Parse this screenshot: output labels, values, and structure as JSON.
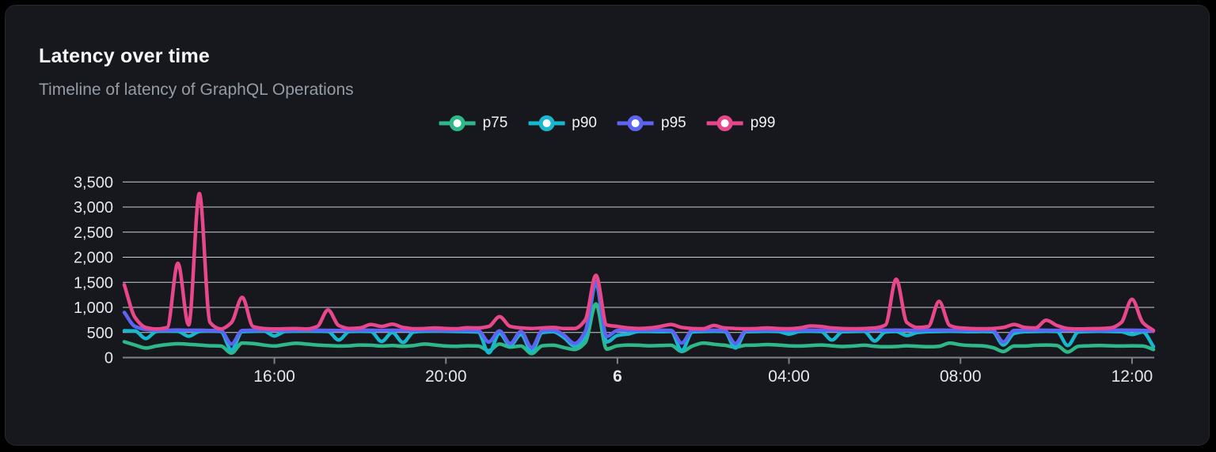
{
  "card": {
    "title": "Latency over time",
    "subtitle": "Timeline of latency of GraphQL Operations"
  },
  "colors": {
    "page_background": "#000000",
    "card_background": "#16181d",
    "card_border": "#24272e",
    "grid_line": "#ccd1d7",
    "axis_line": "#7d8288",
    "tick_mark": "#7d8288",
    "axis_label": "#e5e7ea",
    "title_text": "#f7f8f8",
    "subtitle_text": "#959ca6",
    "legend_text": "#f2f3f4"
  },
  "chart_data": {
    "type": "line",
    "title": "Latency over time",
    "subtitle": "Timeline of latency of GraphQL Operations",
    "grid": "horizontal",
    "legend_position": "top-center",
    "curve": "monotone",
    "x_unit": "time-of-day",
    "x_start_hour": 12.5,
    "x_step_hours": 0.25,
    "x_axis_ticks": [
      {
        "hour": 16,
        "label": "16:00",
        "bold": false
      },
      {
        "hour": 20,
        "label": "20:00",
        "bold": false
      },
      {
        "hour": 24,
        "label": "6",
        "bold": true
      },
      {
        "hour": 28,
        "label": "04:00",
        "bold": false
      },
      {
        "hour": 32,
        "label": "08:00",
        "bold": false
      },
      {
        "hour": 36,
        "label": "12:00",
        "bold": false
      }
    ],
    "ylim": [
      0,
      3500
    ],
    "y_tick_step": 500,
    "y_tick_labels": [
      "0",
      "500",
      "1,000",
      "1,500",
      "2,000",
      "2,500",
      "3,000",
      "3,500"
    ],
    "series": [
      {
        "name": "p75",
        "color": "#2eb88a",
        "values": [
          315,
          250,
          190,
          230,
          260,
          275,
          265,
          250,
          235,
          230,
          90,
          290,
          280,
          250,
          230,
          260,
          285,
          270,
          250,
          240,
          230,
          235,
          250,
          245,
          230,
          240,
          225,
          240,
          270,
          250,
          230,
          225,
          235,
          230,
          140,
          270,
          210,
          230,
          80,
          235,
          245,
          200,
          160,
          300,
          1070,
          170,
          235,
          250,
          245,
          235,
          240,
          245,
          120,
          230,
          290,
          265,
          245,
          210,
          245,
          250,
          260,
          250,
          235,
          230,
          240,
          250,
          235,
          220,
          230,
          245,
          225,
          215,
          220,
          235,
          225,
          215,
          225,
          290,
          255,
          240,
          235,
          200,
          120,
          230,
          230,
          245,
          250,
          240,
          110,
          225,
          235,
          240,
          235,
          230,
          235,
          230,
          160
        ]
      },
      {
        "name": "p90",
        "color": "#18b7d0",
        "values": [
          535,
          530,
          380,
          520,
          530,
          525,
          425,
          520,
          530,
          520,
          150,
          515,
          525,
          530,
          430,
          520,
          525,
          530,
          525,
          520,
          350,
          520,
          525,
          520,
          320,
          500,
          300,
          510,
          525,
          530,
          525,
          520,
          515,
          510,
          95,
          480,
          240,
          460,
          120,
          500,
          515,
          400,
          230,
          420,
          1490,
          310,
          440,
          470,
          520,
          520,
          515,
          520,
          140,
          510,
          520,
          525,
          520,
          190,
          515,
          520,
          525,
          520,
          470,
          520,
          525,
          520,
          350,
          515,
          520,
          525,
          330,
          510,
          520,
          440,
          500,
          515,
          520,
          525,
          520,
          515,
          520,
          515,
          250,
          480,
          515,
          520,
          525,
          520,
          240,
          510,
          520,
          525,
          520,
          515,
          460,
          510,
          220
        ]
      },
      {
        "name": "p95",
        "color": "#5e64f2",
        "values": [
          900,
          620,
          560,
          545,
          545,
          550,
          545,
          545,
          540,
          540,
          270,
          540,
          545,
          548,
          545,
          542,
          545,
          548,
          545,
          542,
          540,
          545,
          548,
          545,
          540,
          545,
          540,
          545,
          548,
          545,
          542,
          545,
          540,
          540,
          310,
          530,
          280,
          520,
          200,
          540,
          545,
          450,
          280,
          520,
          1515,
          420,
          540,
          542,
          545,
          548,
          545,
          542,
          290,
          545,
          548,
          545,
          542,
          280,
          540,
          545,
          548,
          545,
          542,
          545,
          548,
          545,
          542,
          545,
          548,
          545,
          542,
          545,
          548,
          545,
          542,
          545,
          548,
          545,
          542,
          545,
          548,
          545,
          310,
          540,
          545,
          548,
          545,
          542,
          545,
          548,
          545,
          542,
          545,
          548,
          545,
          542,
          530
        ]
      },
      {
        "name": "p99",
        "color": "#e8478b",
        "values": [
          1450,
          800,
          600,
          570,
          600,
          1880,
          650,
          3270,
          700,
          570,
          700,
          1200,
          620,
          580,
          570,
          575,
          580,
          570,
          620,
          950,
          640,
          580,
          590,
          660,
          620,
          665,
          600,
          575,
          580,
          590,
          580,
          575,
          595,
          590,
          620,
          815,
          620,
          590,
          580,
          590,
          600,
          580,
          580,
          750,
          1640,
          650,
          620,
          590,
          580,
          590,
          620,
          660,
          600,
          580,
          575,
          640,
          590,
          580,
          575,
          580,
          590,
          580,
          575,
          590,
          630,
          620,
          590,
          580,
          575,
          580,
          590,
          650,
          1560,
          700,
          600,
          620,
          1120,
          640,
          590,
          580,
          575,
          580,
          600,
          660,
          600,
          590,
          745,
          640,
          580,
          570,
          575,
          580,
          590,
          700,
          1160,
          700,
          540
        ]
      }
    ]
  }
}
